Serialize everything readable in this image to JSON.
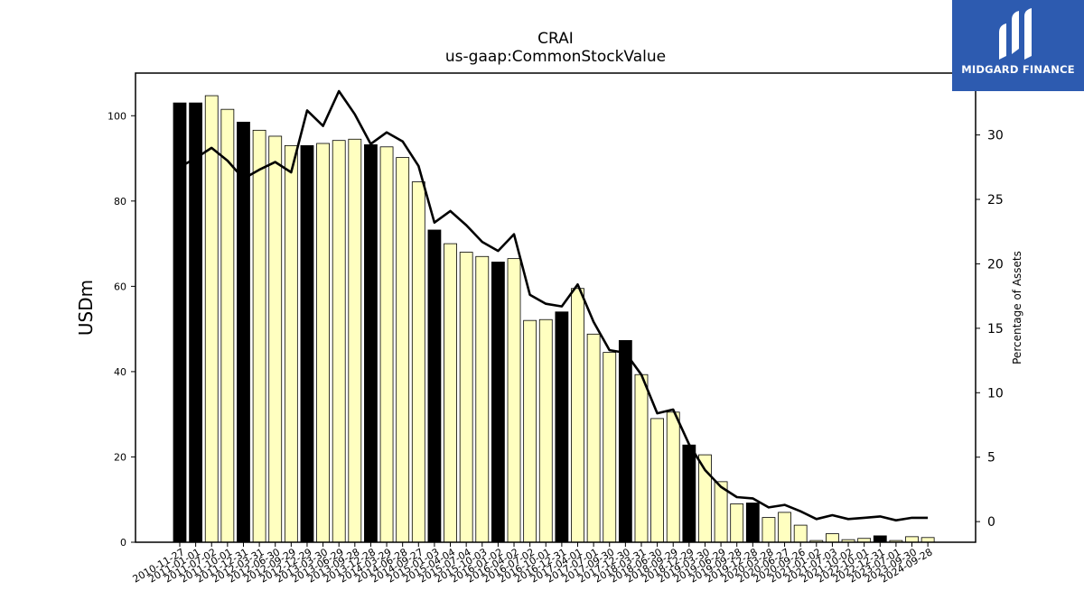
{
  "logo": {
    "text": "MIDGARD FINANCE"
  },
  "colors": {
    "bar_q": "#ffffc0",
    "bar_fy": "#000000",
    "line": "#000000",
    "logo_bg": "#2d5bb0"
  },
  "chart_data": {
    "type": "bar",
    "title": "CRAI",
    "subtitle": "us-gaap:CommonStockValue",
    "ylabel": "USDm",
    "y2label": "Percentage of Assets",
    "ylim": [
      0,
      110
    ],
    "y2lim": [
      -1.6,
      34.8
    ],
    "yticks": [
      0,
      20,
      40,
      60,
      80,
      100
    ],
    "y2ticks": [
      0,
      5,
      10,
      15,
      20,
      25,
      30
    ],
    "categories": [
      "2010-11-27",
      "2011-01-01",
      "2011-07-02",
      "2011-10-01",
      "2011-12-31",
      "2012-03-31",
      "2012-06-30",
      "2012-09-29",
      "2012-12-29",
      "2013-03-30",
      "2013-06-29",
      "2013-09-28",
      "2013-12-28",
      "2014-03-29",
      "2014-06-28",
      "2014-09-27",
      "2015-01-03",
      "2015-04-04",
      "2015-07-04",
      "2015-10-03",
      "2016-01-02",
      "2016-04-02",
      "2016-07-02",
      "2016-10-01",
      "2016-12-31",
      "2017-04-01",
      "2017-07-01",
      "2017-09-30",
      "2017-12-30",
      "2018-03-31",
      "2018-06-30",
      "2018-09-29",
      "2018-12-29",
      "2019-03-30",
      "2019-06-29",
      "2019-09-28",
      "2019-12-28",
      "2020-03-28",
      "2020-06-27",
      "2020-09-26",
      "2021-01-02",
      "2021-07-03",
      "2021-10-02",
      "2022-10-01",
      "2022-12-31",
      "2023-07-01",
      "2023-09-30",
      "2024-09-28"
    ],
    "series": [
      {
        "values": [
          103.0,
          103.0,
          104.7,
          101.5,
          98.5,
          96.6,
          95.2,
          93.0,
          93.0,
          93.5,
          94.2,
          94.5,
          93.2,
          92.7,
          90.2,
          84.5,
          73.2,
          70.0,
          68.0,
          67.0,
          65.7,
          66.5,
          52.0,
          52.2,
          54.0,
          59.5,
          48.8,
          44.5,
          47.3,
          39.3,
          29.0,
          30.5,
          22.8,
          20.5,
          14.2,
          9.0,
          9.2,
          5.8,
          7.0,
          4.0,
          0.4,
          2.0,
          0.6,
          0.9,
          1.5,
          0.4,
          1.3,
          1.1
        ]
      },
      {
        "values": [
          27.5,
          28.2,
          29.0,
          28.0,
          26.6,
          27.3,
          27.9,
          27.1,
          31.9,
          30.7,
          33.4,
          31.6,
          29.3,
          30.2,
          29.5,
          27.6,
          23.2,
          24.1,
          23.0,
          21.7,
          21.0,
          22.3,
          17.6,
          16.9,
          16.7,
          18.4,
          15.5,
          13.3,
          13.1,
          11.4,
          8.4,
          8.7,
          6.0,
          4.0,
          2.7,
          1.9,
          1.8,
          1.1,
          1.3,
          0.8,
          0.2,
          0.5,
          0.2,
          0.3,
          0.4,
          0.1,
          0.3,
          0.3
        ]
      }
    ],
    "fiscal_year_bars": [
      0,
      1,
      4,
      8,
      12,
      16,
      20,
      24,
      28,
      32,
      36,
      44
    ],
    "grid": false,
    "legend": "none"
  }
}
